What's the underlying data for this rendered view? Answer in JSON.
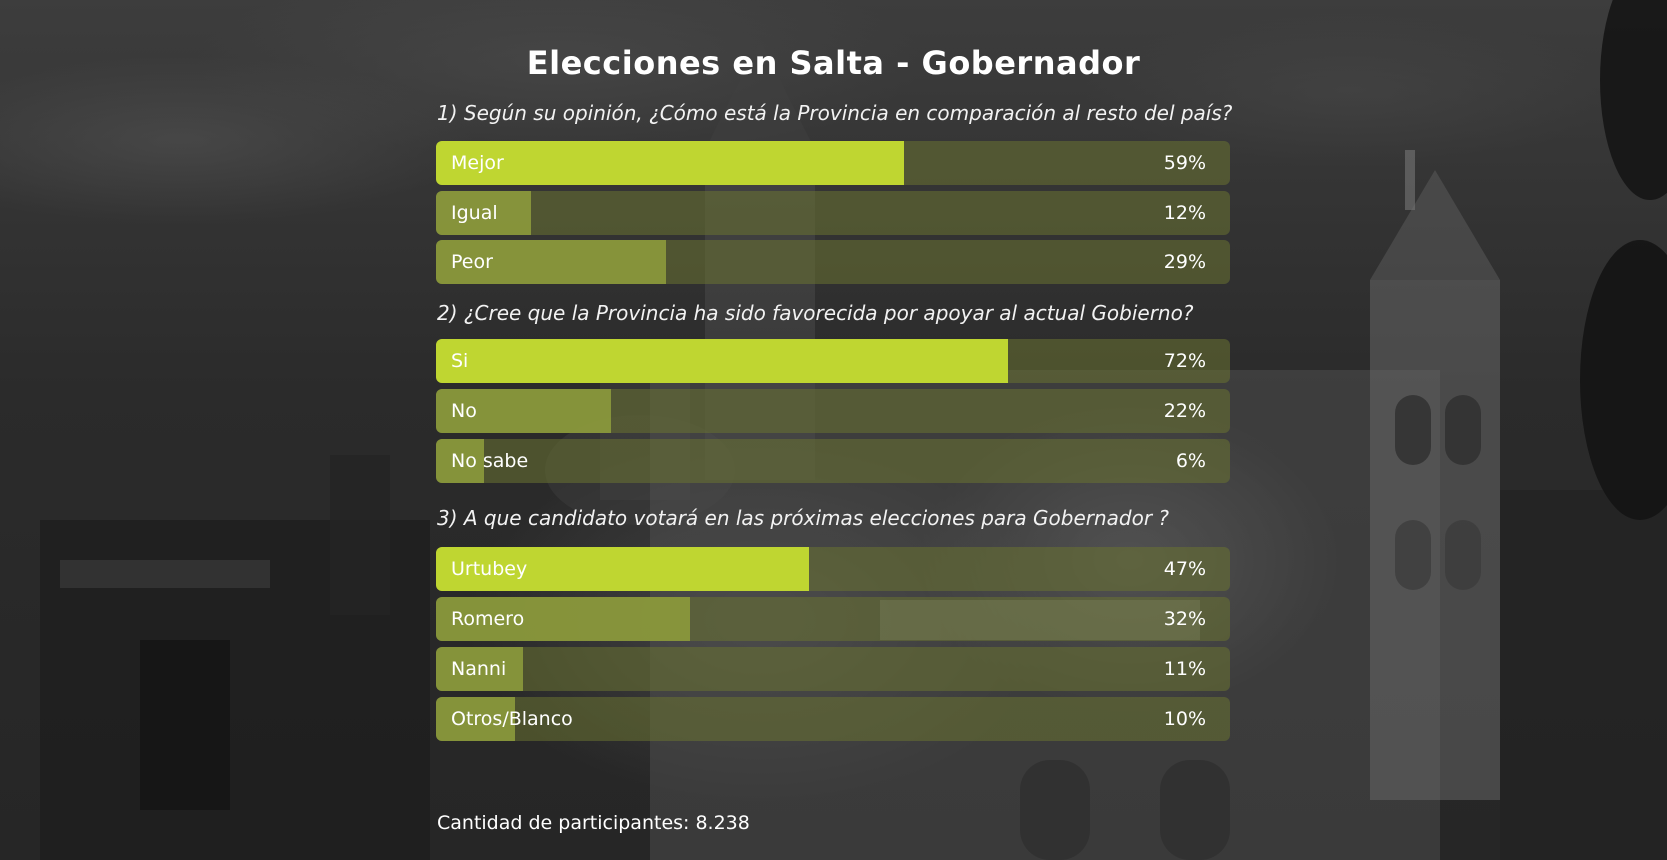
{
  "title": "Elecciones en Salta - Gobernador",
  "colors": {
    "top_fill": "#bfd631",
    "other_fill": "#8c9a3c",
    "track": "#5a6230"
  },
  "questions": [
    {
      "text": "1) Según su opinión, ¿Cómo está la Provincia en comparación al resto del país?",
      "options": [
        {
          "label": "Mejor",
          "value": 59,
          "display": "59%"
        },
        {
          "label": "Igual",
          "value": 12,
          "display": "12%"
        },
        {
          "label": "Peor",
          "value": 29,
          "display": "29%"
        }
      ]
    },
    {
      "text": "2) ¿Cree que la Provincia ha sido favorecida por apoyar al actual Gobierno?",
      "options": [
        {
          "label": "Si",
          "value": 72,
          "display": "72%"
        },
        {
          "label": "No",
          "value": 22,
          "display": "22%"
        },
        {
          "label": "No sabe",
          "value": 6,
          "display": "6%"
        }
      ]
    },
    {
      "text": "3) A que candidato votará en las próximas elecciones para Gobernador ?",
      "options": [
        {
          "label": "Urtubey",
          "value": 47,
          "display": "47%"
        },
        {
          "label": "Romero",
          "value": 32,
          "display": "32%"
        },
        {
          "label": "Nanni",
          "value": 11,
          "display": "11%"
        },
        {
          "label": "Otros/Blanco",
          "value": 10,
          "display": "10%"
        }
      ]
    }
  ],
  "footer": "Cantidad de participantes: 8.238",
  "chart_data": [
    {
      "type": "bar",
      "title": "1) Según su opinión, ¿Cómo está la Provincia en comparación al resto del país?",
      "categories": [
        "Mejor",
        "Igual",
        "Peor"
      ],
      "values": [
        59,
        12,
        29
      ],
      "ylim": [
        0,
        100
      ]
    },
    {
      "type": "bar",
      "title": "2) ¿Cree que la Provincia ha sido favorecida por apoyar al actual Gobierno?",
      "categories": [
        "Si",
        "No",
        "No sabe"
      ],
      "values": [
        72,
        22,
        6
      ],
      "ylim": [
        0,
        100
      ]
    },
    {
      "type": "bar",
      "title": "3) A que candidato votará en las próximas elecciones para Gobernador ?",
      "categories": [
        "Urtubey",
        "Romero",
        "Nanni",
        "Otros/Blanco"
      ],
      "values": [
        47,
        32,
        11,
        10
      ],
      "ylim": [
        0,
        100
      ]
    }
  ]
}
